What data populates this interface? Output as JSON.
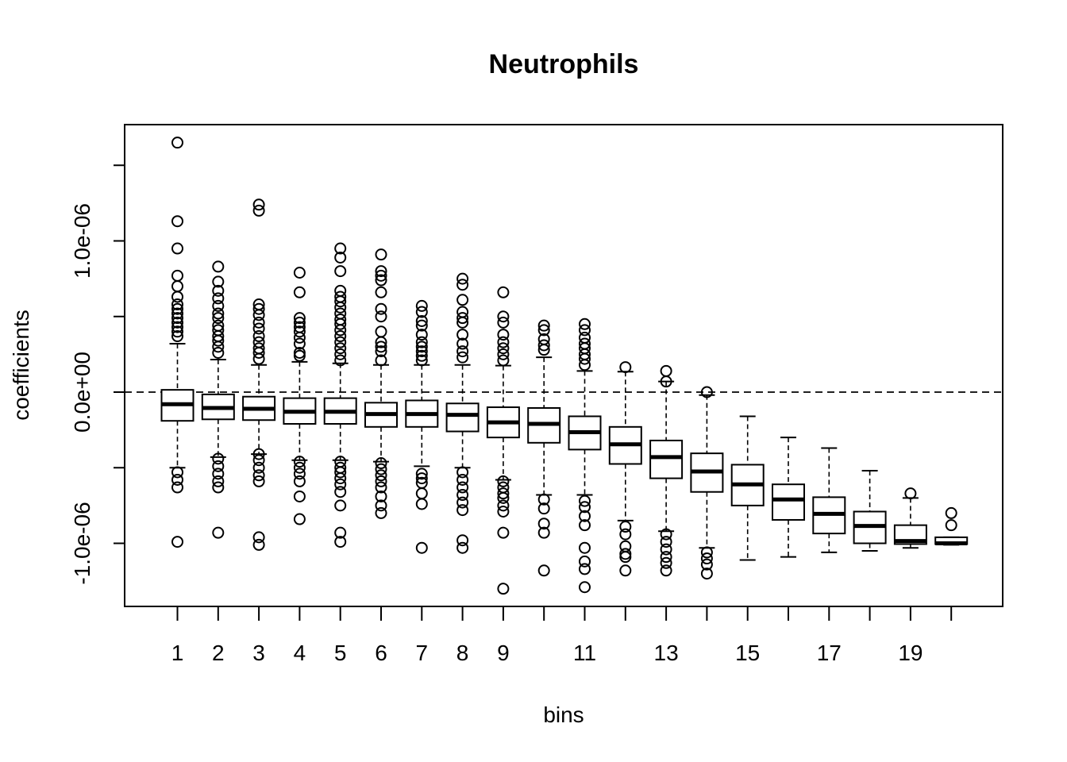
{
  "chart_data": {
    "type": "boxplot",
    "title": "Neutrophils",
    "xlabel": "bins",
    "ylabel": "coefficients",
    "ylim": [
      -1.4e-06,
      1.8e-06
    ],
    "y_ticks": [
      -1e-06,
      -5e-07,
      0.0,
      5e-07,
      1e-06,
      1.5e-06
    ],
    "y_tick_labels": [
      {
        "value": -1e-06,
        "label": "-1.0e-06"
      },
      {
        "value": 0.0,
        "label": "0.0e+00"
      },
      {
        "value": 1e-06,
        "label": "1.0e-06"
      }
    ],
    "x_tick_labels": [
      {
        "bin": 1,
        "label": "1"
      },
      {
        "bin": 2,
        "label": "2"
      },
      {
        "bin": 3,
        "label": "3"
      },
      {
        "bin": 4,
        "label": "4"
      },
      {
        "bin": 5,
        "label": "5"
      },
      {
        "bin": 6,
        "label": "6"
      },
      {
        "bin": 7,
        "label": "7"
      },
      {
        "bin": 8,
        "label": "8"
      },
      {
        "bin": 9,
        "label": "9"
      },
      {
        "bin": 11,
        "label": "11"
      },
      {
        "bin": 13,
        "label": "13"
      },
      {
        "bin": 15,
        "label": "15"
      },
      {
        "bin": 17,
        "label": "17"
      },
      {
        "bin": 19,
        "label": "19"
      }
    ],
    "reference_line_y": 0.0,
    "bins": [
      {
        "bin": 1,
        "low": -5e-07,
        "q1": -1.9e-07,
        "median": -8e-08,
        "q3": 1.5e-08,
        "high": 3.2e-07,
        "outliers": [
          1.65e-06,
          1.13e-06,
          9.5e-07,
          7.7e-07,
          7e-07,
          6.3e-07,
          5.8e-07,
          5.5e-07,
          5.2e-07,
          4.9e-07,
          4.6e-07,
          4.3e-07,
          4e-07,
          3.7e-07,
          -5.3e-07,
          -5.8e-07,
          -6.3e-07,
          -9.9e-07
        ]
      },
      {
        "bin": 2,
        "low": -4.3e-07,
        "q1": -1.8e-07,
        "median": -1.05e-07,
        "q3": -1.5e-08,
        "high": 2.15e-07,
        "outliers": [
          8.3e-07,
          7.3e-07,
          6.7e-07,
          6.2e-07,
          5.7e-07,
          5.2e-07,
          4.9e-07,
          4.4e-07,
          4.1e-07,
          3.7e-07,
          3.4e-07,
          3e-07,
          2.6e-07,
          -4.4e-07,
          -4.9e-07,
          -5.4e-07,
          -5.9e-07,
          -6.3e-07,
          -9.3e-07
        ]
      },
      {
        "bin": 3,
        "low": -4.1e-07,
        "q1": -1.85e-07,
        "median": -1.1e-07,
        "q3": -3e-08,
        "high": 1.8e-07,
        "outliers": [
          1.24e-06,
          1.2e-06,
          5.8e-07,
          5.5e-07,
          5.1e-07,
          4.6e-07,
          4.2e-07,
          3.7e-07,
          3.3e-07,
          2.9e-07,
          2.6e-07,
          2.2e-07,
          -4.1e-07,
          -4.5e-07,
          -5e-07,
          -5.5e-07,
          -5.9e-07,
          -9.6e-07,
          -1.01e-06
        ]
      },
      {
        "bin": 4,
        "low": -4.5e-07,
        "q1": -2.1e-07,
        "median": -1.3e-07,
        "q3": -4e-08,
        "high": 2e-07,
        "outliers": [
          7.9e-07,
          6.6e-07,
          4.9e-07,
          4.6e-07,
          4.3e-07,
          4e-07,
          3.6e-07,
          3.2e-07,
          2.6e-07,
          2.4e-07,
          -4.6e-07,
          -5e-07,
          -5.4e-07,
          -5.9e-07,
          -6.9e-07,
          -8.4e-07
        ]
      },
      {
        "bin": 5,
        "low": -4.5e-07,
        "q1": -2.1e-07,
        "median": -1.3e-07,
        "q3": -4e-08,
        "high": 1.9e-07,
        "outliers": [
          9.5e-07,
          8.9e-07,
          8e-07,
          6.7e-07,
          6.3e-07,
          6e-07,
          5.6e-07,
          5.2e-07,
          4.8e-07,
          4.5e-07,
          4.1e-07,
          3.7e-07,
          3.3e-07,
          2.9e-07,
          2.5e-07,
          2.1e-07,
          -4.6e-07,
          -5e-07,
          -5.3e-07,
          -5.7e-07,
          -6.1e-07,
          -6.6e-07,
          -7.5e-07,
          -9.3e-07,
          -9.9e-07
        ]
      },
      {
        "bin": 6,
        "low": -4.6e-07,
        "q1": -2.3e-07,
        "median": -1.45e-07,
        "q3": -7e-08,
        "high": 1.8e-07,
        "outliers": [
          9.1e-07,
          8e-07,
          7.7e-07,
          7.4e-07,
          6.6e-07,
          5.5e-07,
          5e-07,
          4e-07,
          3.3e-07,
          3e-07,
          2.7e-07,
          2.1e-07,
          -4.7e-07,
          -5.1e-07,
          -5.5e-07,
          -5.9e-07,
          -6.3e-07,
          -6.9e-07,
          -7.5e-07,
          -8e-07
        ]
      },
      {
        "bin": 7,
        "low": -4.9e-07,
        "q1": -2.3e-07,
        "median": -1.45e-07,
        "q3": -5.5e-08,
        "high": 1.8e-07,
        "outliers": [
          5.7e-07,
          5.3e-07,
          4.7e-07,
          4.4e-07,
          3.8e-07,
          3.3e-07,
          3e-07,
          2.7e-07,
          2.4e-07,
          2.1e-07,
          -5.4e-07,
          -5.7e-07,
          -6e-07,
          -6.7e-07,
          -7.4e-07,
          -1.03e-06
        ]
      },
      {
        "bin": 8,
        "low": -5e-07,
        "q1": -2.6e-07,
        "median": -1.5e-07,
        "q3": -7.5e-08,
        "high": 1.8e-07,
        "outliers": [
          7.5e-07,
          7.1e-07,
          6.1e-07,
          5.3e-07,
          4.9e-07,
          4.6e-07,
          3.8e-07,
          3.2e-07,
          2.7e-07,
          2.3e-07,
          -5.3e-07,
          -5.8e-07,
          -6.3e-07,
          -6.8e-07,
          -7.3e-07,
          -7.8e-07,
          -9.8e-07,
          -1.03e-06
        ]
      },
      {
        "bin": 9,
        "low": -5.8e-07,
        "q1": -3e-07,
        "median": -2e-07,
        "q3": -1e-07,
        "high": 1.75e-07,
        "outliers": [
          6.6e-07,
          5e-07,
          4.6e-07,
          3.8e-07,
          3.3e-07,
          2.9e-07,
          2.5e-07,
          2.1e-07,
          -5.9e-07,
          -6.3e-07,
          -6.7e-07,
          -7e-07,
          -7.5e-07,
          -7.9e-07,
          -9.3e-07,
          -1.3e-06
        ]
      },
      {
        "bin": 10,
        "low": -6.8e-07,
        "q1": -3.35e-07,
        "median": -2.1e-07,
        "q3": -1.05e-07,
        "high": 2.3e-07,
        "outliers": [
          4.4e-07,
          4.1e-07,
          3.5e-07,
          3.1e-07,
          2.8e-07,
          -7.1e-07,
          -7.7e-07,
          -8.7e-07,
          -9.3e-07,
          -1.18e-06
        ]
      },
      {
        "bin": 11,
        "low": -6.8e-07,
        "q1": -3.8e-07,
        "median": -2.65e-07,
        "q3": -1.6e-07,
        "high": 1.4e-07,
        "outliers": [
          4.5e-07,
          4.1e-07,
          3.6e-07,
          3.2e-07,
          2.9e-07,
          2.5e-07,
          2.2e-07,
          1.8e-07,
          -7.2e-07,
          -7.6e-07,
          -8.2e-07,
          -8.8e-07,
          -1.03e-06,
          -1.12e-06,
          -1.17e-06,
          -1.29e-06
        ]
      },
      {
        "bin": 12,
        "low": -8.5e-07,
        "q1": -4.75e-07,
        "median": -3.45e-07,
        "q3": -2.3e-07,
        "high": 1.35e-07,
        "outliers": [
          1.65e-07,
          -8.9e-07,
          -9.4e-07,
          -1.02e-06,
          -1.07e-06,
          -1.09e-06,
          -1.18e-06
        ]
      },
      {
        "bin": 13,
        "low": -9.2e-07,
        "q1": -5.7e-07,
        "median": -4.3e-07,
        "q3": -3.2e-07,
        "high": 7e-08,
        "outliers": [
          1.4e-07,
          7e-08,
          -9.4e-07,
          -9.9e-07,
          -1.04e-06,
          -1.09e-06,
          -1.13e-06,
          -1.18e-06
        ]
      },
      {
        "bin": 14,
        "low": -1.03e-06,
        "q1": -6.6e-07,
        "median": -5.25e-07,
        "q3": -4.05e-07,
        "high": -2e-08,
        "outliers": [
          0.0,
          -1.06e-06,
          -1.1e-06,
          -1.14e-06,
          -1.2e-06
        ]
      },
      {
        "bin": 15,
        "low": -1.11e-06,
        "q1": -7.5e-07,
        "median": -6.1e-07,
        "q3": -4.8e-07,
        "high": -1.6e-07,
        "outliers": []
      },
      {
        "bin": 16,
        "low": -1.09e-06,
        "q1": -8.45e-07,
        "median": -7.1e-07,
        "q3": -6.1e-07,
        "high": -3e-07,
        "outliers": []
      },
      {
        "bin": 17,
        "low": -1.06e-06,
        "q1": -9.35e-07,
        "median": -8.05e-07,
        "q3": -6.95e-07,
        "high": -3.7e-07,
        "outliers": []
      },
      {
        "bin": 18,
        "low": -1.05e-06,
        "q1": -1e-06,
        "median": -8.85e-07,
        "q3": -7.9e-07,
        "high": -5.2e-07,
        "outliers": []
      },
      {
        "bin": 19,
        "low": -1.03e-06,
        "q1": -1.005e-06,
        "median": -9.85e-07,
        "q3": -8.8e-07,
        "high": -7e-07,
        "outliers": [
          -6.7e-07
        ]
      },
      {
        "bin": 20,
        "low": -1.01e-06,
        "q1": -1.005e-06,
        "median": -1e-06,
        "q3": -9.6e-07,
        "high": -9.6e-07,
        "outliers": [
          -8e-07,
          -8.8e-07
        ]
      }
    ]
  }
}
